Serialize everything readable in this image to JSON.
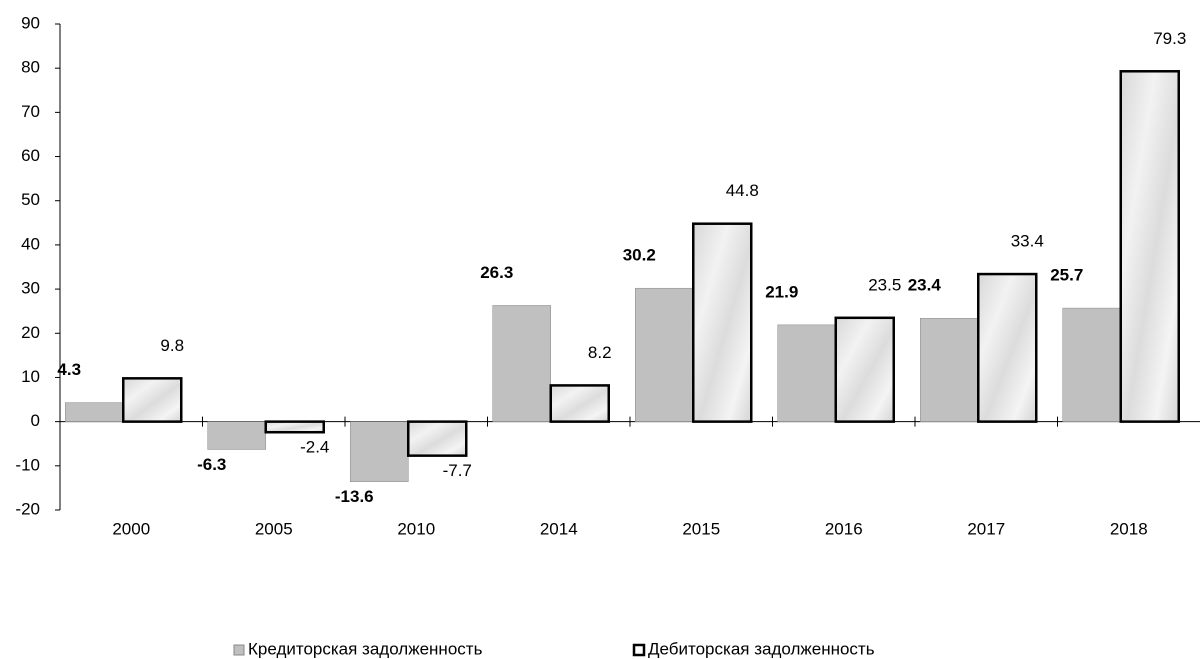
{
  "chart_data": {
    "type": "bar",
    "categories": [
      "2000",
      "2005",
      "2010",
      "2014",
      "2015",
      "2016",
      "2017",
      "2018"
    ],
    "series": [
      {
        "name": "Кредиторская задолженность",
        "color": "#c0c0c0",
        "values": [
          4.3,
          -6.3,
          -13.6,
          26.3,
          30.2,
          21.9,
          23.4,
          25.7
        ]
      },
      {
        "name": "Дебиторская задолженность",
        "color": "#e4e4e4",
        "values": [
          9.8,
          -2.4,
          -7.7,
          8.2,
          44.8,
          23.5,
          33.4,
          79.3
        ]
      }
    ],
    "ylim": [
      -20,
      90
    ],
    "yticks": [
      -20,
      -10,
      0,
      10,
      20,
      30,
      40,
      50,
      60,
      70,
      80,
      90
    ]
  }
}
